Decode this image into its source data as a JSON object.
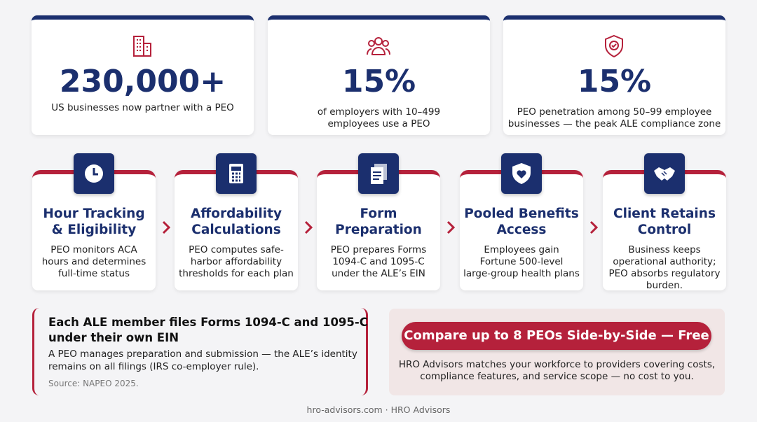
{
  "stats": [
    {
      "value": "230,000+",
      "lines": [
        "US businesses now partner with a PEO"
      ]
    },
    {
      "value": "15%",
      "lines": [
        "of employers with 10–499",
        "employees use a PEO"
      ]
    },
    {
      "value": "15%",
      "lines": [
        "PEO penetration among 50–99 employee",
        "businesses — the peak ALE compliance zone"
      ]
    }
  ],
  "steps": [
    {
      "title": [
        "Hour Tracking",
        "& Eligibility"
      ],
      "lines": [
        "PEO monitors ACA",
        "hours and determines",
        "full-time status"
      ]
    },
    {
      "title": [
        "Affordability",
        "Calculations"
      ],
      "lines": [
        "PEO computes safe-",
        "harbor affordability",
        "thresholds for each plan"
      ]
    },
    {
      "title": [
        "Form",
        "Preparation"
      ],
      "lines": [
        "PEO prepares Forms",
        "1094-C and 1095-C",
        "under the ALE’s EIN"
      ]
    },
    {
      "title": [
        "Pooled Benefits",
        "Access"
      ],
      "lines": [
        "Employees gain",
        "Fortune 500-level",
        "large-group health plans"
      ]
    },
    {
      "title": [
        "Client Retains",
        "Control"
      ],
      "lines": [
        "Business keeps",
        "operational authority;",
        "PEO absorbs regulatory",
        "burden."
      ]
    }
  ],
  "note": {
    "title": [
      "Each ALE member files Forms 1094-C and 1095-C",
      "under their own EIN"
    ],
    "lines": [
      "A PEO manages preparation and submission — the ALE’s identity",
      "remains on all filings (IRS co-employer rule)."
    ],
    "source": "Source: NAPEO 2025."
  },
  "cta": {
    "button": "Compare up to 8 PEOs Side-by-Side — Free",
    "lines": [
      "HRO Advisors matches your workforce to providers covering costs,",
      "compliance features, and service scope — no cost to you."
    ]
  },
  "footer": "hro-advisors.com · HRO Advisors"
}
